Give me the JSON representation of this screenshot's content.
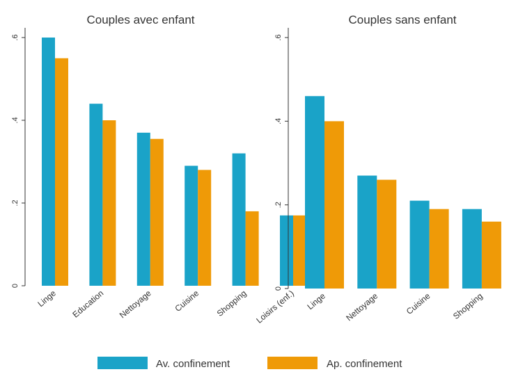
{
  "chart_data": [
    {
      "type": "bar",
      "title": "Couples avec enfant",
      "categories": [
        "Linge",
        "Education",
        "Nettoyage",
        "Cuisine",
        "Shopping",
        "Loisirs (enf.)"
      ],
      "series": [
        {
          "name": "Av. confinement",
          "values": [
            0.6,
            0.44,
            0.37,
            0.29,
            0.32,
            0.17
          ]
        },
        {
          "name": "Ap. confinement",
          "values": [
            0.55,
            0.4,
            0.355,
            0.28,
            0.18,
            0.17
          ]
        }
      ],
      "ylim": [
        0,
        0.6
      ],
      "yticks": [
        0,
        0.2,
        0.4,
        0.6
      ],
      "ytick_labels": [
        "0",
        ".2",
        ".4",
        ".6"
      ],
      "xlabel": "",
      "ylabel": ""
    },
    {
      "type": "bar",
      "title": "Couples sans enfant",
      "categories": [
        "Linge",
        "Nettoyage",
        "Cuisine",
        "Shopping"
      ],
      "series": [
        {
          "name": "Av. confinement",
          "values": [
            0.46,
            0.27,
            0.21,
            0.19
          ]
        },
        {
          "name": "Ap. confinement",
          "values": [
            0.4,
            0.26,
            0.19,
            0.16
          ]
        }
      ],
      "ylim": [
        0,
        0.6
      ],
      "yticks": [
        0,
        0.2,
        0.4,
        0.6
      ],
      "ytick_labels": [
        "0",
        ".2",
        ".4",
        ".6"
      ],
      "xlabel": "",
      "ylabel": ""
    }
  ],
  "legend": {
    "position": "bottom",
    "items": [
      {
        "label": "Av. confinement",
        "color": "#1aa3c8"
      },
      {
        "label": "Ap. confinement",
        "color": "#ef9a07"
      }
    ]
  },
  "colors": {
    "series": [
      "#1aa3c8",
      "#ef9a07"
    ],
    "text": "#333333"
  }
}
